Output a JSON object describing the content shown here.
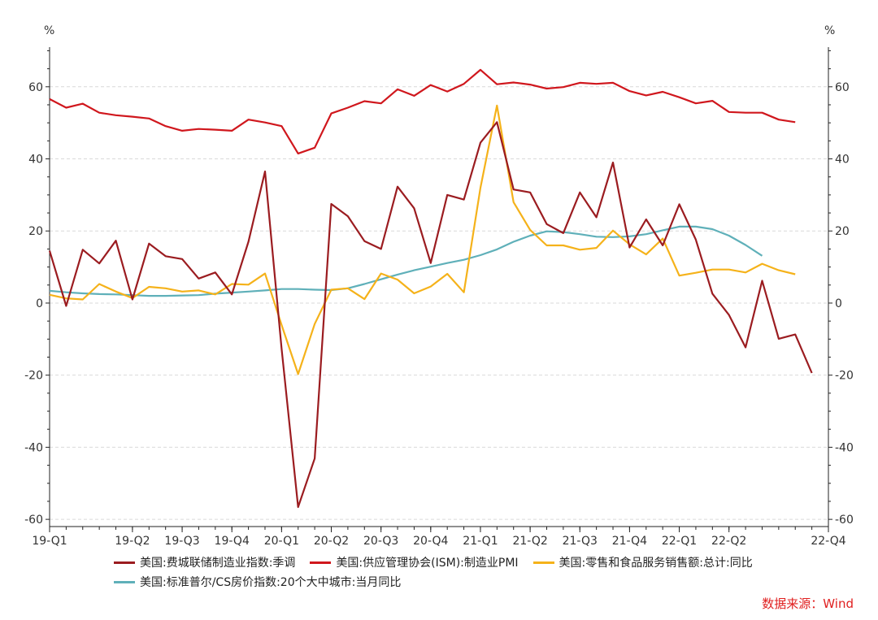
{
  "chart_data": {
    "type": "line",
    "ylabel_left": "%",
    "ylabel_right": "%",
    "ylim": [
      -62,
      71
    ],
    "yticks": [
      -60,
      -40,
      -20,
      0,
      20,
      40,
      60
    ],
    "grid": true,
    "x_tick_labels": [
      "19-Q1",
      "19-Q2",
      "19-Q3",
      "19-Q4",
      "20-Q1",
      "20-Q2",
      "20-Q3",
      "20-Q4",
      "21-Q1",
      "21-Q2",
      "21-Q3",
      "21-Q4",
      "22-Q1",
      "22-Q2",
      "22-Q4"
    ],
    "x_tick_months": [
      0,
      5,
      8,
      11,
      14,
      17,
      20,
      23,
      26,
      29,
      32,
      35,
      38,
      41,
      47
    ],
    "x_months": [
      "2019-01",
      "2019-02",
      "2019-03",
      "2019-04",
      "2019-05",
      "2019-06",
      "2019-07",
      "2019-08",
      "2019-09",
      "2019-10",
      "2019-11",
      "2019-12",
      "2020-01",
      "2020-02",
      "2020-03",
      "2020-04",
      "2020-05",
      "2020-06",
      "2020-07",
      "2020-08",
      "2020-09",
      "2020-10",
      "2020-11",
      "2020-12",
      "2021-01",
      "2021-02",
      "2021-03",
      "2021-04",
      "2021-05",
      "2021-06",
      "2021-07",
      "2021-08",
      "2021-09",
      "2021-10",
      "2021-11",
      "2021-12",
      "2022-01",
      "2022-02",
      "2022-03",
      "2022-04",
      "2022-05",
      "2022-06",
      "2022-07",
      "2022-08",
      "2022-09",
      "2022-10",
      "2022-11",
      "2022-12"
    ],
    "legend_position": "bottom",
    "series": [
      {
        "name": "美国:费城联储制造业指数:季调",
        "color": "#9b1c20",
        "values": [
          14.5,
          -0.8,
          14.8,
          11.0,
          17.3,
          1.0,
          16.5,
          13.0,
          12.2,
          6.8,
          8.5,
          2.4,
          17.0,
          36.5,
          -12.7,
          -56.6,
          -43.1,
          27.5,
          24.1,
          17.2,
          15.0,
          32.3,
          26.3,
          11.1,
          30.0,
          28.7,
          44.5,
          50.2,
          31.5,
          30.7,
          21.9,
          19.4,
          30.7,
          23.8,
          39.0,
          15.4,
          23.2,
          16.0,
          27.4,
          17.6,
          2.6,
          -3.3,
          -12.3,
          6.2,
          -9.9,
          -8.7,
          -19.4
        ]
      },
      {
        "name": "美国:供应管理协会(ISM):制造业PMI",
        "color": "#d0171d",
        "values": [
          56.6,
          54.2,
          55.3,
          52.8,
          52.1,
          51.7,
          51.2,
          49.1,
          47.8,
          48.3,
          48.1,
          47.8,
          50.9,
          50.1,
          49.1,
          41.5,
          43.1,
          52.6,
          54.2,
          56.0,
          55.4,
          59.3,
          57.5,
          60.5,
          58.7,
          60.8,
          64.7,
          60.7,
          61.2,
          60.6,
          59.5,
          59.9,
          61.1,
          60.8,
          61.1,
          58.8,
          57.6,
          58.6,
          57.1,
          55.4,
          56.1,
          53.0,
          52.8,
          52.8,
          50.9,
          50.2
        ]
      },
      {
        "name": "美国:零售和食品服务销售额:总计:同比",
        "color": "#f5b21a",
        "values": [
          2.3,
          1.3,
          1.0,
          5.3,
          3.2,
          1.4,
          4.5,
          4.1,
          3.2,
          3.5,
          2.4,
          5.3,
          5.1,
          8.2,
          -6.1,
          -19.7,
          -5.8,
          3.7,
          4.1,
          1.1,
          8.2,
          6.5,
          2.7,
          4.6,
          8.1,
          3.0,
          32.0,
          54.8,
          28.0,
          20.3,
          16.0,
          16.0,
          14.8,
          15.3,
          20.1,
          16.3,
          13.5,
          17.9,
          7.6,
          8.4,
          9.3,
          9.3,
          8.5,
          10.9,
          9.1,
          8.0
        ]
      },
      {
        "name": "美国:标准普尔/CS房价指数:20个大中城市:当月同比",
        "color": "#5fb0b9",
        "values": [
          3.4,
          3.0,
          2.7,
          2.5,
          2.4,
          2.2,
          2.0,
          2.0,
          2.1,
          2.2,
          2.6,
          2.9,
          3.2,
          3.5,
          3.9,
          3.9,
          3.7,
          3.6,
          4.1,
          5.3,
          6.6,
          7.9,
          9.1,
          10.1,
          11.1,
          12.0,
          13.3,
          14.9,
          17.0,
          18.7,
          19.9,
          19.7,
          19.1,
          18.4,
          18.3,
          18.5,
          19.1,
          20.2,
          21.2,
          21.2,
          20.5,
          18.7,
          16.1,
          13.1
        ]
      }
    ],
    "source_text": "数据来源：Wind"
  }
}
